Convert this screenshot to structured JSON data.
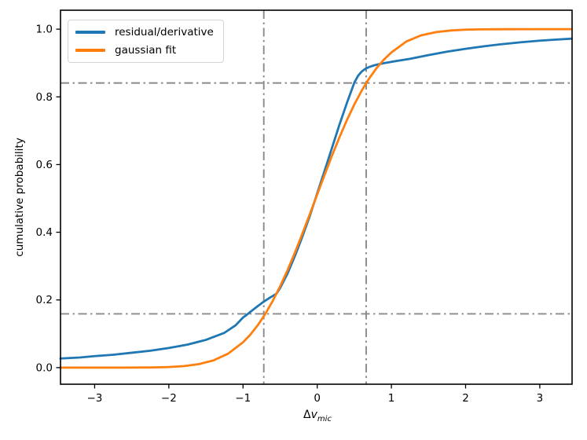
{
  "figure": {
    "background": "#ffffff"
  },
  "chart_data": {
    "type": "line",
    "title": "",
    "xlabel": "Δv_mic",
    "xlabel_parts": {
      "prefix": "Δ",
      "variable": "v",
      "subscript": "mic"
    },
    "ylabel": "cumulative probability",
    "grid": false,
    "axes": {
      "xlim": [
        -3.46,
        3.435
      ],
      "ylim": [
        -0.049,
        1.056
      ],
      "xticks": {
        "values": [
          -3,
          -2,
          -1,
          0,
          1,
          2,
          3
        ],
        "labels": [
          "−3",
          "−2",
          "−1",
          "0",
          "1",
          "2",
          "3"
        ]
      },
      "yticks": {
        "values": [
          0.0,
          0.2,
          0.4,
          0.6,
          0.8,
          1.0
        ],
        "labels": [
          "0.0",
          "0.2",
          "0.4",
          "0.6",
          "0.8",
          "1.0"
        ]
      }
    },
    "legend": {
      "position": "upper-left",
      "entries": [
        "residual/derivative",
        "gaussian fit"
      ]
    },
    "series": [
      {
        "name": "residual/derivative",
        "color": "#1f77b4",
        "x": [
          -3.46,
          -3.2,
          -3.0,
          -2.75,
          -2.5,
          -2.25,
          -2.0,
          -1.75,
          -1.5,
          -1.25,
          -1.1,
          -1.0,
          -0.95,
          -0.9,
          -0.8,
          -0.72,
          -0.65,
          -0.55,
          -0.5,
          -0.4,
          -0.3,
          -0.2,
          -0.1,
          0.0,
          0.1,
          0.2,
          0.3,
          0.4,
          0.45,
          0.5,
          0.55,
          0.6,
          0.65,
          0.7,
          0.75,
          0.8,
          0.9,
          1.0,
          1.1,
          1.25,
          1.5,
          1.75,
          2.0,
          2.25,
          2.5,
          2.75,
          3.0,
          3.2,
          3.43
        ],
        "y": [
          0.027,
          0.03,
          0.034,
          0.038,
          0.044,
          0.05,
          0.058,
          0.068,
          0.082,
          0.103,
          0.125,
          0.148,
          0.156,
          0.165,
          0.182,
          0.195,
          0.205,
          0.218,
          0.235,
          0.278,
          0.33,
          0.387,
          0.448,
          0.515,
          0.582,
          0.65,
          0.718,
          0.782,
          0.812,
          0.842,
          0.862,
          0.875,
          0.883,
          0.888,
          0.892,
          0.895,
          0.8995,
          0.9035,
          0.907,
          0.9125,
          0.9235,
          0.9335,
          0.942,
          0.9495,
          0.956,
          0.9615,
          0.966,
          0.969,
          0.972
        ]
      },
      {
        "name": "gaussian fit",
        "color": "#ff7f0e",
        "x": [
          -3.46,
          -3.0,
          -2.6,
          -2.4,
          -2.2,
          -2.0,
          -1.8,
          -1.6,
          -1.4,
          -1.2,
          -1.0,
          -0.9,
          -0.8,
          -0.7,
          -0.6,
          -0.5,
          -0.4,
          -0.3,
          -0.2,
          -0.1,
          0.0,
          0.1,
          0.2,
          0.3,
          0.4,
          0.5,
          0.6,
          0.7,
          0.8,
          0.9,
          1.0,
          1.2,
          1.4,
          1.6,
          1.8,
          2.0,
          2.2,
          2.5,
          3.0,
          3.43
        ],
        "y": [
          0.0,
          0.0,
          0.0001,
          0.0003,
          0.0007,
          0.0018,
          0.0044,
          0.0101,
          0.0212,
          0.0414,
          0.0748,
          0.0978,
          0.1256,
          0.1587,
          0.1969,
          0.2401,
          0.288,
          0.34,
          0.3957,
          0.4533,
          0.5117,
          0.57,
          0.6268,
          0.6808,
          0.7313,
          0.7775,
          0.8186,
          0.8543,
          0.8849,
          0.9104,
          0.9312,
          0.9635,
          0.9817,
          0.9913,
          0.9961,
          0.9985,
          0.9994,
          0.9999,
          1.0,
          1.0
        ]
      }
    ],
    "reference_lines": {
      "color": "#8a8a8a",
      "style": "dashdot",
      "hlines": [
        0.159,
        0.841
      ],
      "vlines": [
        -0.72,
        0.66
      ]
    }
  }
}
